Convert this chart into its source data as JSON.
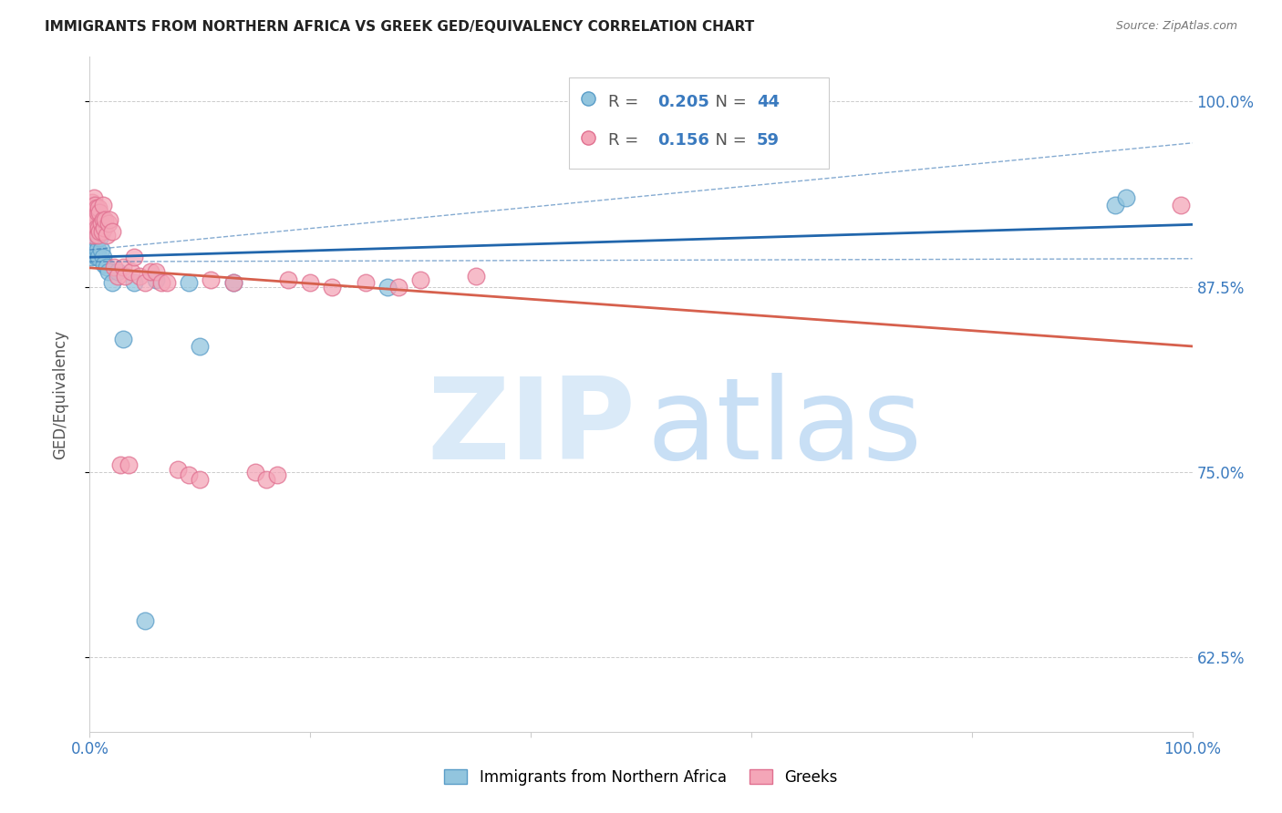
{
  "title": "IMMIGRANTS FROM NORTHERN AFRICA VS GREEK GED/EQUIVALENCY CORRELATION CHART",
  "source": "Source: ZipAtlas.com",
  "ylabel": "GED/Equivalency",
  "legend_blue_r": "0.205",
  "legend_blue_n": "44",
  "legend_pink_r": "0.156",
  "legend_pink_n": "59",
  "legend_label_blue": "Immigrants from Northern Africa",
  "legend_label_pink": "Greeks",
  "blue_scatter_color": "#92c5de",
  "pink_scatter_color": "#f4a6b8",
  "blue_line_color": "#2166ac",
  "pink_line_color": "#d6604d",
  "blue_scatter_edge": "#5a9dc8",
  "pink_scatter_edge": "#e07090",
  "xlim": [
    0.0,
    1.0
  ],
  "ylim": [
    0.575,
    1.03
  ],
  "ytick_vals": [
    0.625,
    0.75,
    0.875,
    1.0
  ],
  "ytick_labels": [
    "62.5%",
    "75.0%",
    "87.5%",
    "100.0%"
  ],
  "blue_x": [
    0.001,
    0.001,
    0.002,
    0.002,
    0.002,
    0.003,
    0.003,
    0.003,
    0.003,
    0.004,
    0.004,
    0.004,
    0.005,
    0.005,
    0.005,
    0.005,
    0.006,
    0.006,
    0.006,
    0.007,
    0.007,
    0.007,
    0.008,
    0.008,
    0.009,
    0.01,
    0.01,
    0.011,
    0.012,
    0.013,
    0.015,
    0.017,
    0.02,
    0.025,
    0.03,
    0.04,
    0.05,
    0.06,
    0.09,
    0.1,
    0.13,
    0.27,
    0.93,
    0.94
  ],
  "blue_y": [
    0.895,
    0.9,
    0.918,
    0.92,
    0.925,
    0.91,
    0.918,
    0.922,
    0.93,
    0.905,
    0.915,
    0.925,
    0.9,
    0.908,
    0.918,
    0.925,
    0.895,
    0.91,
    0.92,
    0.9,
    0.912,
    0.92,
    0.895,
    0.915,
    0.908,
    0.9,
    0.92,
    0.912,
    0.895,
    0.89,
    0.888,
    0.885,
    0.878,
    0.885,
    0.84,
    0.878,
    0.65,
    0.88,
    0.878,
    0.835,
    0.878,
    0.875,
    0.93,
    0.935
  ],
  "pink_x": [
    0.001,
    0.001,
    0.002,
    0.002,
    0.003,
    0.003,
    0.004,
    0.004,
    0.004,
    0.005,
    0.005,
    0.006,
    0.006,
    0.007,
    0.007,
    0.008,
    0.008,
    0.009,
    0.009,
    0.01,
    0.011,
    0.012,
    0.012,
    0.013,
    0.014,
    0.015,
    0.017,
    0.018,
    0.02,
    0.022,
    0.025,
    0.028,
    0.03,
    0.032,
    0.035,
    0.038,
    0.04,
    0.045,
    0.05,
    0.055,
    0.06,
    0.065,
    0.07,
    0.08,
    0.09,
    0.1,
    0.11,
    0.13,
    0.15,
    0.16,
    0.17,
    0.18,
    0.2,
    0.22,
    0.25,
    0.28,
    0.3,
    0.35,
    0.99
  ],
  "pink_y": [
    0.918,
    0.928,
    0.92,
    0.932,
    0.91,
    0.925,
    0.918,
    0.928,
    0.935,
    0.92,
    0.93,
    0.915,
    0.928,
    0.91,
    0.925,
    0.915,
    0.928,
    0.912,
    0.925,
    0.918,
    0.912,
    0.92,
    0.93,
    0.915,
    0.92,
    0.91,
    0.918,
    0.92,
    0.912,
    0.888,
    0.882,
    0.755,
    0.888,
    0.882,
    0.755,
    0.885,
    0.895,
    0.882,
    0.878,
    0.885,
    0.885,
    0.878,
    0.878,
    0.752,
    0.748,
    0.745,
    0.88,
    0.878,
    0.75,
    0.745,
    0.748,
    0.88,
    0.878,
    0.875,
    0.878,
    0.875,
    0.88,
    0.882,
    0.93
  ],
  "watermark_zip_color": "#daeaf8",
  "watermark_atlas_color": "#c8dff5"
}
